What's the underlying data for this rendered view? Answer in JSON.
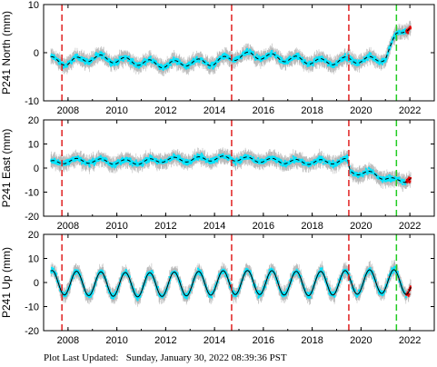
{
  "footer": {
    "label": "Plot Last Updated:",
    "timestamp": "Sunday, January 30, 2022 08:39:36 PST"
  },
  "colors": {
    "data_points": "#00e5ff",
    "error_bars": "#b8b8b8",
    "model_line": "#000000",
    "recent_points": "#e00000",
    "equipment_change_lines": "#e02020",
    "latest_event_line": "#22cc22"
  },
  "chart_data": [
    {
      "type": "scatter",
      "ylabel": "P241 North (mm)",
      "xlim": [
        2007.0,
        2023.0
      ],
      "ylim": [
        -10,
        10
      ],
      "yticks": [
        -10,
        0,
        10
      ],
      "xticks": [
        2008,
        2010,
        2012,
        2014,
        2016,
        2018,
        2020,
        2022
      ],
      "vlines_red": [
        2007.75,
        2014.7,
        2019.5
      ],
      "vlines_green": [
        2021.45
      ],
      "series": [
        {
          "x": [
            2007.3,
            2008.0,
            2009.0,
            2010.0,
            2011.0,
            2012.0,
            2013.0,
            2014.0,
            2014.7,
            2015.5,
            2016.5,
            2017.5,
            2018.5,
            2019.5,
            2020.5,
            2021.0,
            2021.45,
            2021.8,
            2022.0
          ],
          "y": [
            -1.5,
            -2.0,
            -1.0,
            -1.5,
            -2.0,
            -2.5,
            -2.0,
            -2.0,
            -1.0,
            -0.5,
            -1.0,
            -1.5,
            -2.0,
            -1.5,
            -1.5,
            -1.0,
            3.5,
            5.0,
            5.5
          ]
        }
      ],
      "seasonal_amplitude": 0.7
    },
    {
      "type": "scatter",
      "ylabel": "P241 East (mm)",
      "xlim": [
        2007.0,
        2023.0
      ],
      "ylim": [
        -20,
        20
      ],
      "yticks": [
        -20,
        -10,
        0,
        10,
        20
      ],
      "xticks": [
        2008,
        2010,
        2012,
        2014,
        2016,
        2018,
        2020,
        2022
      ],
      "vlines_red": [
        2007.75,
        2014.7,
        2019.5
      ],
      "vlines_green": [
        2021.45
      ],
      "series": [
        {
          "x": [
            2007.3,
            2008.0,
            2009.0,
            2010.0,
            2011.0,
            2012.0,
            2013.0,
            2014.0,
            2014.7,
            2015.5,
            2016.5,
            2017.5,
            2018.5,
            2019.45,
            2019.55,
            2020.5,
            2021.0,
            2021.45,
            2021.8,
            2022.0
          ],
          "y": [
            2.0,
            3.0,
            3.0,
            2.5,
            2.5,
            3.5,
            3.5,
            4.0,
            4.0,
            3.5,
            3.0,
            2.5,
            2.5,
            3.0,
            -1.5,
            -2.5,
            -4.0,
            -5.5,
            -5.0,
            -4.0
          ]
        }
      ],
      "seasonal_amplitude": 1.0
    },
    {
      "type": "scatter",
      "ylabel": "P241 Up (mm)",
      "xlim": [
        2007.0,
        2023.0
      ],
      "ylim": [
        -20,
        20
      ],
      "yticks": [
        -20,
        -10,
        0,
        10,
        20
      ],
      "xticks": [
        2008,
        2010,
        2012,
        2014,
        2016,
        2018,
        2020,
        2022
      ],
      "vlines_red": [
        2007.75,
        2014.7,
        2019.5
      ],
      "vlines_green": [
        2021.45
      ],
      "series": [
        {
          "x": [
            2007.3,
            2009.0,
            2011.0,
            2013.0,
            2014.7,
            2016.0,
            2018.0,
            2019.5,
            2021.0,
            2022.0
          ],
          "y": [
            0.0,
            -0.5,
            -1.0,
            -0.5,
            0.0,
            0.0,
            -0.5,
            0.0,
            0.5,
            0.0
          ]
        }
      ],
      "seasonal_amplitude": 5.0
    }
  ]
}
